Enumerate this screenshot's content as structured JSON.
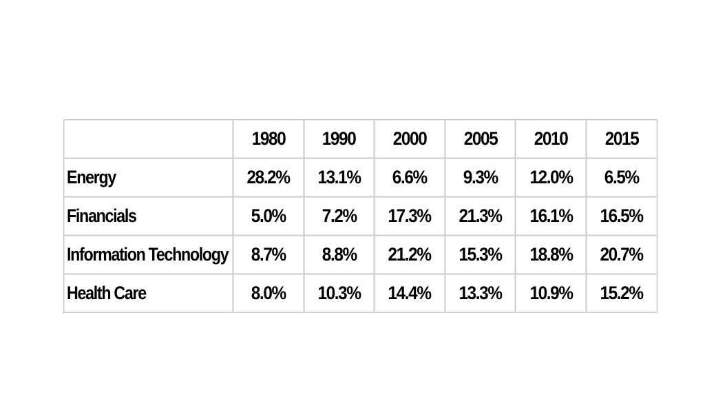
{
  "table": {
    "corner": "",
    "columns": [
      "1980",
      "1990",
      "2000",
      "2005",
      "2010",
      "2015"
    ],
    "rows": [
      {
        "label": "Energy",
        "values": [
          "28.2%",
          "13.1%",
          "6.6%",
          "9.3%",
          "12.0%",
          "6.5%"
        ]
      },
      {
        "label": "Financials",
        "values": [
          "5.0%",
          "7.2%",
          "17.3%",
          "21.3%",
          "16.1%",
          "16.5%"
        ]
      },
      {
        "label": "Information Technology",
        "values": [
          "8.7%",
          "8.8%",
          "21.2%",
          "15.3%",
          "18.8%",
          "20.7%"
        ]
      },
      {
        "label": "Health Care",
        "values": [
          "8.0%",
          "10.3%",
          "14.4%",
          "13.3%",
          "10.9%",
          "15.2%"
        ]
      }
    ]
  }
}
